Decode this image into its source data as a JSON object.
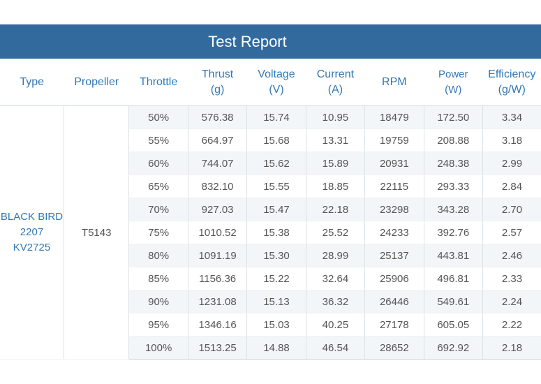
{
  "title": "Test Report",
  "headers": [
    {
      "line1": "Type",
      "line2": ""
    },
    {
      "line1": "Propeller",
      "line2": ""
    },
    {
      "line1": "Throttle",
      "line2": ""
    },
    {
      "line1": "Thrust",
      "line2": "(g)"
    },
    {
      "line1": "Voltage",
      "line2": "(V)"
    },
    {
      "line1": "Current",
      "line2": "(A)"
    },
    {
      "line1": "RPM",
      "line2": ""
    },
    {
      "line1": "Power",
      "line2": "(W)"
    },
    {
      "line1": "Efficiency",
      "line2": "(g/W)"
    }
  ],
  "type_lines": [
    "BLACK BIRD",
    "2207",
    "KV2725"
  ],
  "propeller": "T5143",
  "rows": [
    [
      "50%",
      "576.38",
      "15.74",
      "10.95",
      "18479",
      "172.50",
      "3.34"
    ],
    [
      "55%",
      "664.97",
      "15.68",
      "13.31",
      "19759",
      "208.88",
      "3.18"
    ],
    [
      "60%",
      "744.07",
      "15.62",
      "15.89",
      "20931",
      "248.38",
      "2.99"
    ],
    [
      "65%",
      "832.10",
      "15.55",
      "18.85",
      "22115",
      "293.33",
      "2.84"
    ],
    [
      "70%",
      "927.03",
      "15.47",
      "22.18",
      "23298",
      "343.28",
      "2.70"
    ],
    [
      "75%",
      "1010.52",
      "15.38",
      "25.52",
      "24233",
      "392.76",
      "2.57"
    ],
    [
      "80%",
      "1091.19",
      "15.30",
      "28.99",
      "25137",
      "443.81",
      "2.46"
    ],
    [
      "85%",
      "1156.36",
      "15.22",
      "32.64",
      "25906",
      "496.81",
      "2.33"
    ],
    [
      "90%",
      "1231.08",
      "15.13",
      "36.32",
      "26446",
      "549.61",
      "2.24"
    ],
    [
      "95%",
      "1346.16",
      "15.03",
      "40.25",
      "27178",
      "605.05",
      "2.22"
    ],
    [
      "100%",
      "1513.25",
      "14.88",
      "46.54",
      "28652",
      "692.92",
      "2.18"
    ]
  ]
}
